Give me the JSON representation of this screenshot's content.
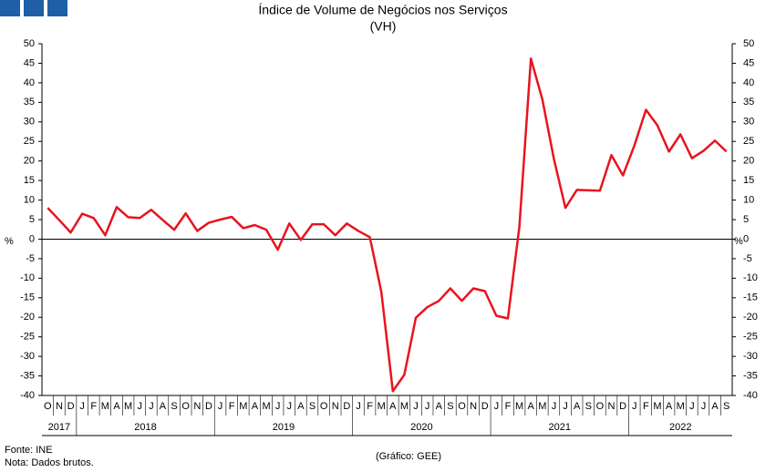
{
  "chart_data": {
    "type": "line",
    "title": "Índice de Volume de Negócios nos Serviços",
    "subtitle": "(VH)",
    "y_label": "%",
    "categories": [
      "O",
      "N",
      "D",
      "J",
      "F",
      "M",
      "A",
      "M",
      "J",
      "J",
      "A",
      "S",
      "O",
      "N",
      "D",
      "J",
      "F",
      "M",
      "A",
      "M",
      "J",
      "J",
      "A",
      "S",
      "O",
      "N",
      "D",
      "J",
      "F",
      "M",
      "A",
      "M",
      "J",
      "J",
      "A",
      "S",
      "O",
      "N",
      "D",
      "J",
      "F",
      "M",
      "A",
      "M",
      "J",
      "J",
      "A",
      "S",
      "O",
      "N",
      "D",
      "J",
      "F",
      "M",
      "A",
      "M",
      "J",
      "J",
      "A",
      "S"
    ],
    "years": [
      "2017",
      "2018",
      "2019",
      "2020",
      "2021",
      "2022"
    ],
    "series": [
      {
        "color": "#e8141e",
        "values": [
          8.0,
          4.9,
          1.7,
          6.5,
          5.4,
          1.0,
          8.2,
          5.6,
          5.4,
          7.5,
          4.9,
          2.4,
          6.6,
          2.1,
          4.2,
          5.0,
          5.7,
          2.8,
          3.6,
          2.4,
          -2.7,
          4.0,
          -0.2,
          3.8,
          3.8,
          1.0,
          4.0,
          2.1,
          0.5,
          -13.5,
          -38.9,
          -34.7,
          -20.1,
          -17.4,
          -15.8,
          -12.6,
          -15.8,
          -12.6,
          -13.3,
          -19.6,
          -20.3,
          3.2,
          46.2,
          35.7,
          20.5,
          8.0,
          12.6,
          12.5,
          12.4,
          21.5,
          16.3,
          24.0,
          33.1,
          29.1,
          22.4,
          26.8,
          20.7,
          22.6,
          25.2,
          22.4
        ]
      }
    ],
    "ylim": [
      -40,
      50
    ],
    "yticks": [
      -40,
      -35,
      -30,
      -25,
      -20,
      -15,
      -10,
      -5,
      0,
      5,
      10,
      15,
      20,
      25,
      30,
      35,
      40,
      45,
      50
    ],
    "source": "Fonte: INE",
    "note": "Nota: Dados brutos.",
    "credit": "(Gráfico: GEE)"
  }
}
